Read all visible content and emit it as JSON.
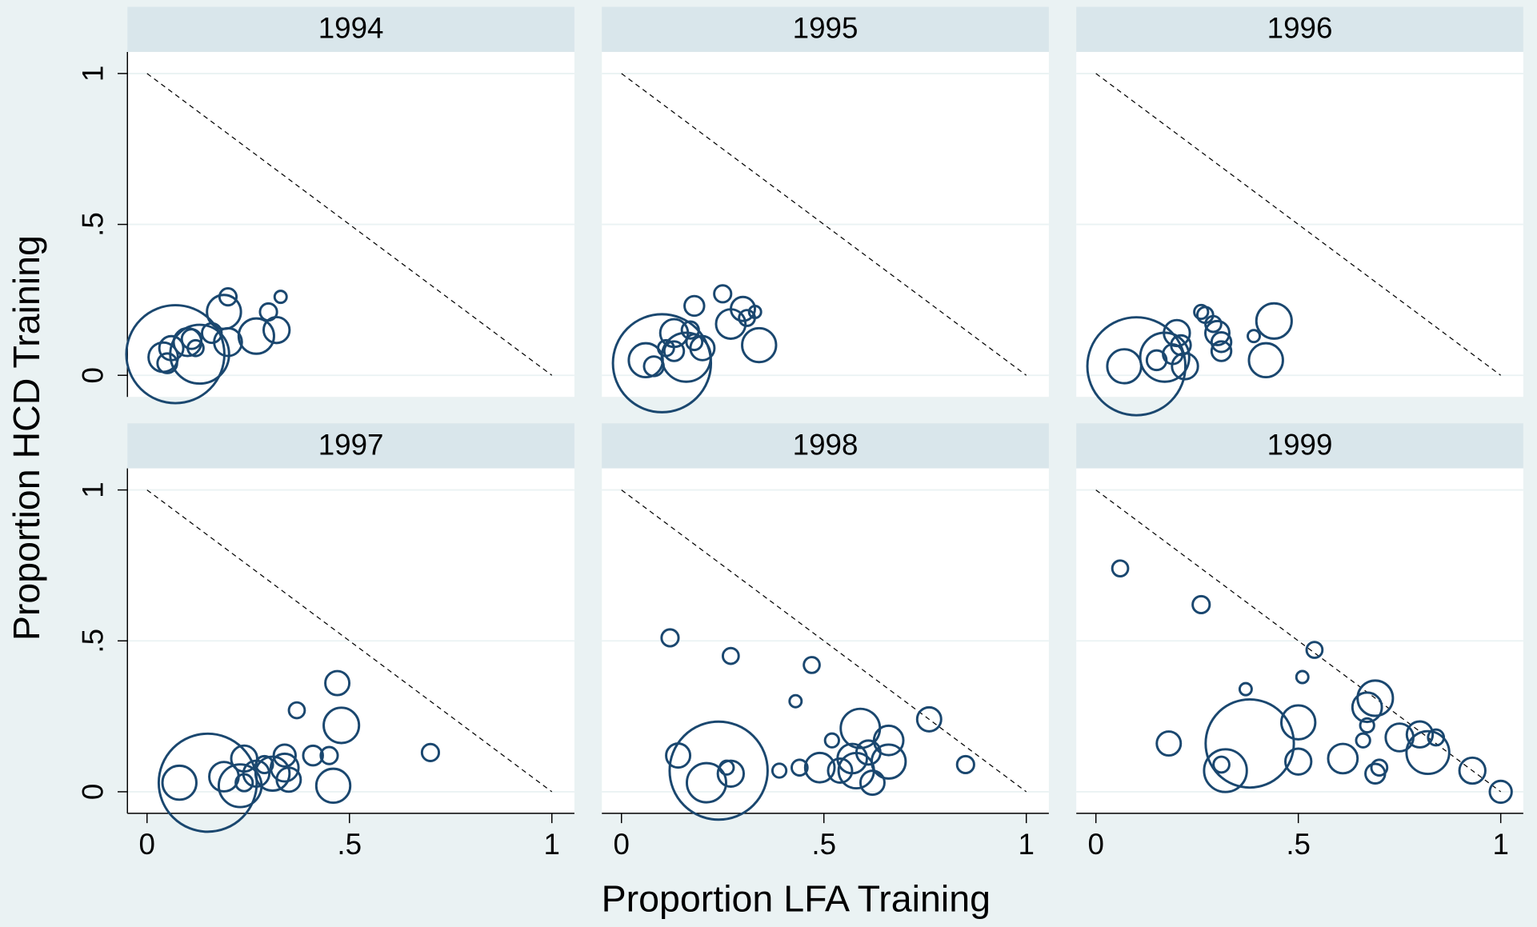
{
  "chart_data": {
    "type": "scatter",
    "xlabel": "Proportion LFA Training",
    "ylabel": "Proportion HCD Training",
    "color": "#1a476f",
    "xlim": [
      0,
      1
    ],
    "ylim": [
      0,
      1
    ],
    "xticks": [
      0,
      {
        "value": 0.5,
        "label": ".5"
      },
      1
    ],
    "yticks": [
      0,
      {
        "value": 0.5,
        "label": ".5"
      },
      1
    ],
    "grid": true,
    "facets": [
      {
        "title": "1994",
        "x": [
          0.07,
          0.2,
          0.33,
          0.19,
          0.3,
          0.27,
          0.32,
          0.2,
          0.13,
          0.1,
          0.04,
          0.16,
          0.11,
          0.06,
          0.05,
          0.12
        ],
        "y": [
          0.07,
          0.26,
          0.26,
          0.21,
          0.21,
          0.13,
          0.15,
          0.11,
          0.07,
          0.11,
          0.06,
          0.14,
          0.12,
          0.09,
          0.04,
          0.09
        ],
        "sizes": [
          100,
          3,
          1.5,
          12,
          3,
          13,
          7,
          8,
          36,
          8,
          9,
          4,
          4,
          6,
          4,
          2.6
        ]
      },
      {
        "title": "1995",
        "x": [
          0.1,
          0.25,
          0.18,
          0.3,
          0.33,
          0.31,
          0.27,
          0.34,
          0.13,
          0.17,
          0.2,
          0.16,
          0.06,
          0.13,
          0.08,
          0.18,
          0.11
        ],
        "y": [
          0.04,
          0.27,
          0.23,
          0.22,
          0.21,
          0.19,
          0.17,
          0.1,
          0.14,
          0.15,
          0.09,
          0.06,
          0.05,
          0.08,
          0.03,
          0.11,
          0.09
        ],
        "sizes": [
          100,
          3,
          4,
          6,
          1.5,
          2.6,
          9,
          12,
          8,
          3,
          6,
          25,
          12,
          4,
          4,
          2.6,
          2.6
        ]
      },
      {
        "title": "1996",
        "x": [
          0.1,
          0.07,
          0.17,
          0.26,
          0.27,
          0.29,
          0.3,
          0.31,
          0.44,
          0.42,
          0.39,
          0.31,
          0.2,
          0.21,
          0.22,
          0.15,
          0.19
        ],
        "y": [
          0.03,
          0.03,
          0.06,
          0.21,
          0.2,
          0.17,
          0.14,
          0.11,
          0.18,
          0.05,
          0.13,
          0.08,
          0.14,
          0.1,
          0.03,
          0.05,
          0.07
        ],
        "sizes": [
          100,
          12,
          25,
          2,
          2.6,
          2.6,
          6,
          4,
          13,
          12,
          1.5,
          4,
          7,
          4,
          7,
          4,
          4
        ]
      },
      {
        "title": "1997",
        "x": [
          0.15,
          0.47,
          0.48,
          0.37,
          0.7,
          0.41,
          0.45,
          0.46,
          0.34,
          0.34,
          0.31,
          0.27,
          0.23,
          0.24,
          0.19,
          0.08,
          0.24,
          0.35,
          0.29
        ],
        "y": [
          0.03,
          0.36,
          0.22,
          0.27,
          0.13,
          0.12,
          0.12,
          0.02,
          0.12,
          0.08,
          0.06,
          0.06,
          0.02,
          0.11,
          0.05,
          0.03,
          0.03,
          0.04,
          0.09
        ],
        "sizes": [
          100,
          6,
          13,
          2.6,
          3,
          4,
          3,
          12,
          5,
          8,
          12,
          7,
          19,
          7,
          9,
          12,
          3,
          6,
          3
        ]
      },
      {
        "title": "1998",
        "x": [
          0.24,
          0.12,
          0.27,
          0.47,
          0.43,
          0.76,
          0.85,
          0.59,
          0.66,
          0.14,
          0.21,
          0.27,
          0.26,
          0.39,
          0.49,
          0.44,
          0.52,
          0.54,
          0.57,
          0.58,
          0.66,
          0.62,
          0.61
        ],
        "y": [
          0.07,
          0.51,
          0.45,
          0.42,
          0.3,
          0.24,
          0.09,
          0.21,
          0.17,
          0.12,
          0.03,
          0.06,
          0.08,
          0.07,
          0.08,
          0.08,
          0.17,
          0.07,
          0.11,
          0.07,
          0.1,
          0.03,
          0.13
        ],
        "sizes": [
          100,
          3,
          2.6,
          2.6,
          1.5,
          6,
          3,
          16,
          9,
          6,
          16,
          7,
          2,
          2,
          9,
          2.6,
          2,
          6,
          9,
          13,
          12,
          6,
          6
        ]
      },
      {
        "title": "1999",
        "x": [
          0.06,
          0.26,
          0.54,
          0.51,
          0.37,
          0.38,
          0.18,
          0.31,
          0.32,
          0.5,
          0.5,
          0.61,
          0.67,
          0.69,
          0.67,
          0.66,
          0.7,
          0.69,
          0.75,
          0.8,
          0.84,
          0.82,
          0.93,
          1.0
        ],
        "y": [
          0.74,
          0.62,
          0.47,
          0.38,
          0.34,
          0.16,
          0.16,
          0.09,
          0.07,
          0.23,
          0.1,
          0.11,
          0.28,
          0.31,
          0.22,
          0.17,
          0.08,
          0.06,
          0.18,
          0.19,
          0.18,
          0.13,
          0.07,
          0.0
        ],
        "sizes": [
          2.6,
          3,
          2.6,
          1.5,
          1.5,
          81,
          6,
          2.6,
          19,
          12,
          7,
          9,
          9,
          13,
          2,
          2,
          2.6,
          4,
          8,
          7,
          2.6,
          19,
          7,
          5
        ]
      }
    ]
  }
}
